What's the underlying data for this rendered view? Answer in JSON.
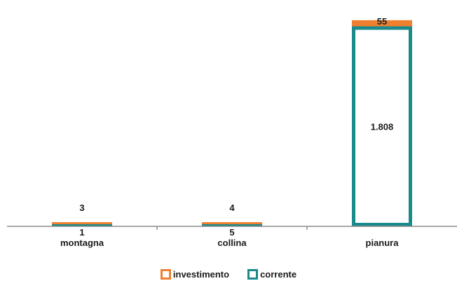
{
  "chart_data": {
    "type": "bar",
    "stacked": true,
    "categories": [
      "montagna",
      "collina",
      "pianura"
    ],
    "series": [
      {
        "name": "corrente",
        "values": [
          1,
          5,
          1808
        ],
        "labels": [
          "1",
          "5",
          "1.808"
        ],
        "color": "#1a8a8a"
      },
      {
        "name": "investimento",
        "values": [
          3,
          4,
          55
        ],
        "labels": [
          "3",
          "4",
          "55"
        ],
        "color": "#f08030"
      }
    ],
    "ylim": [
      0,
      1900
    ],
    "grid": false,
    "legend_position": "bottom"
  }
}
